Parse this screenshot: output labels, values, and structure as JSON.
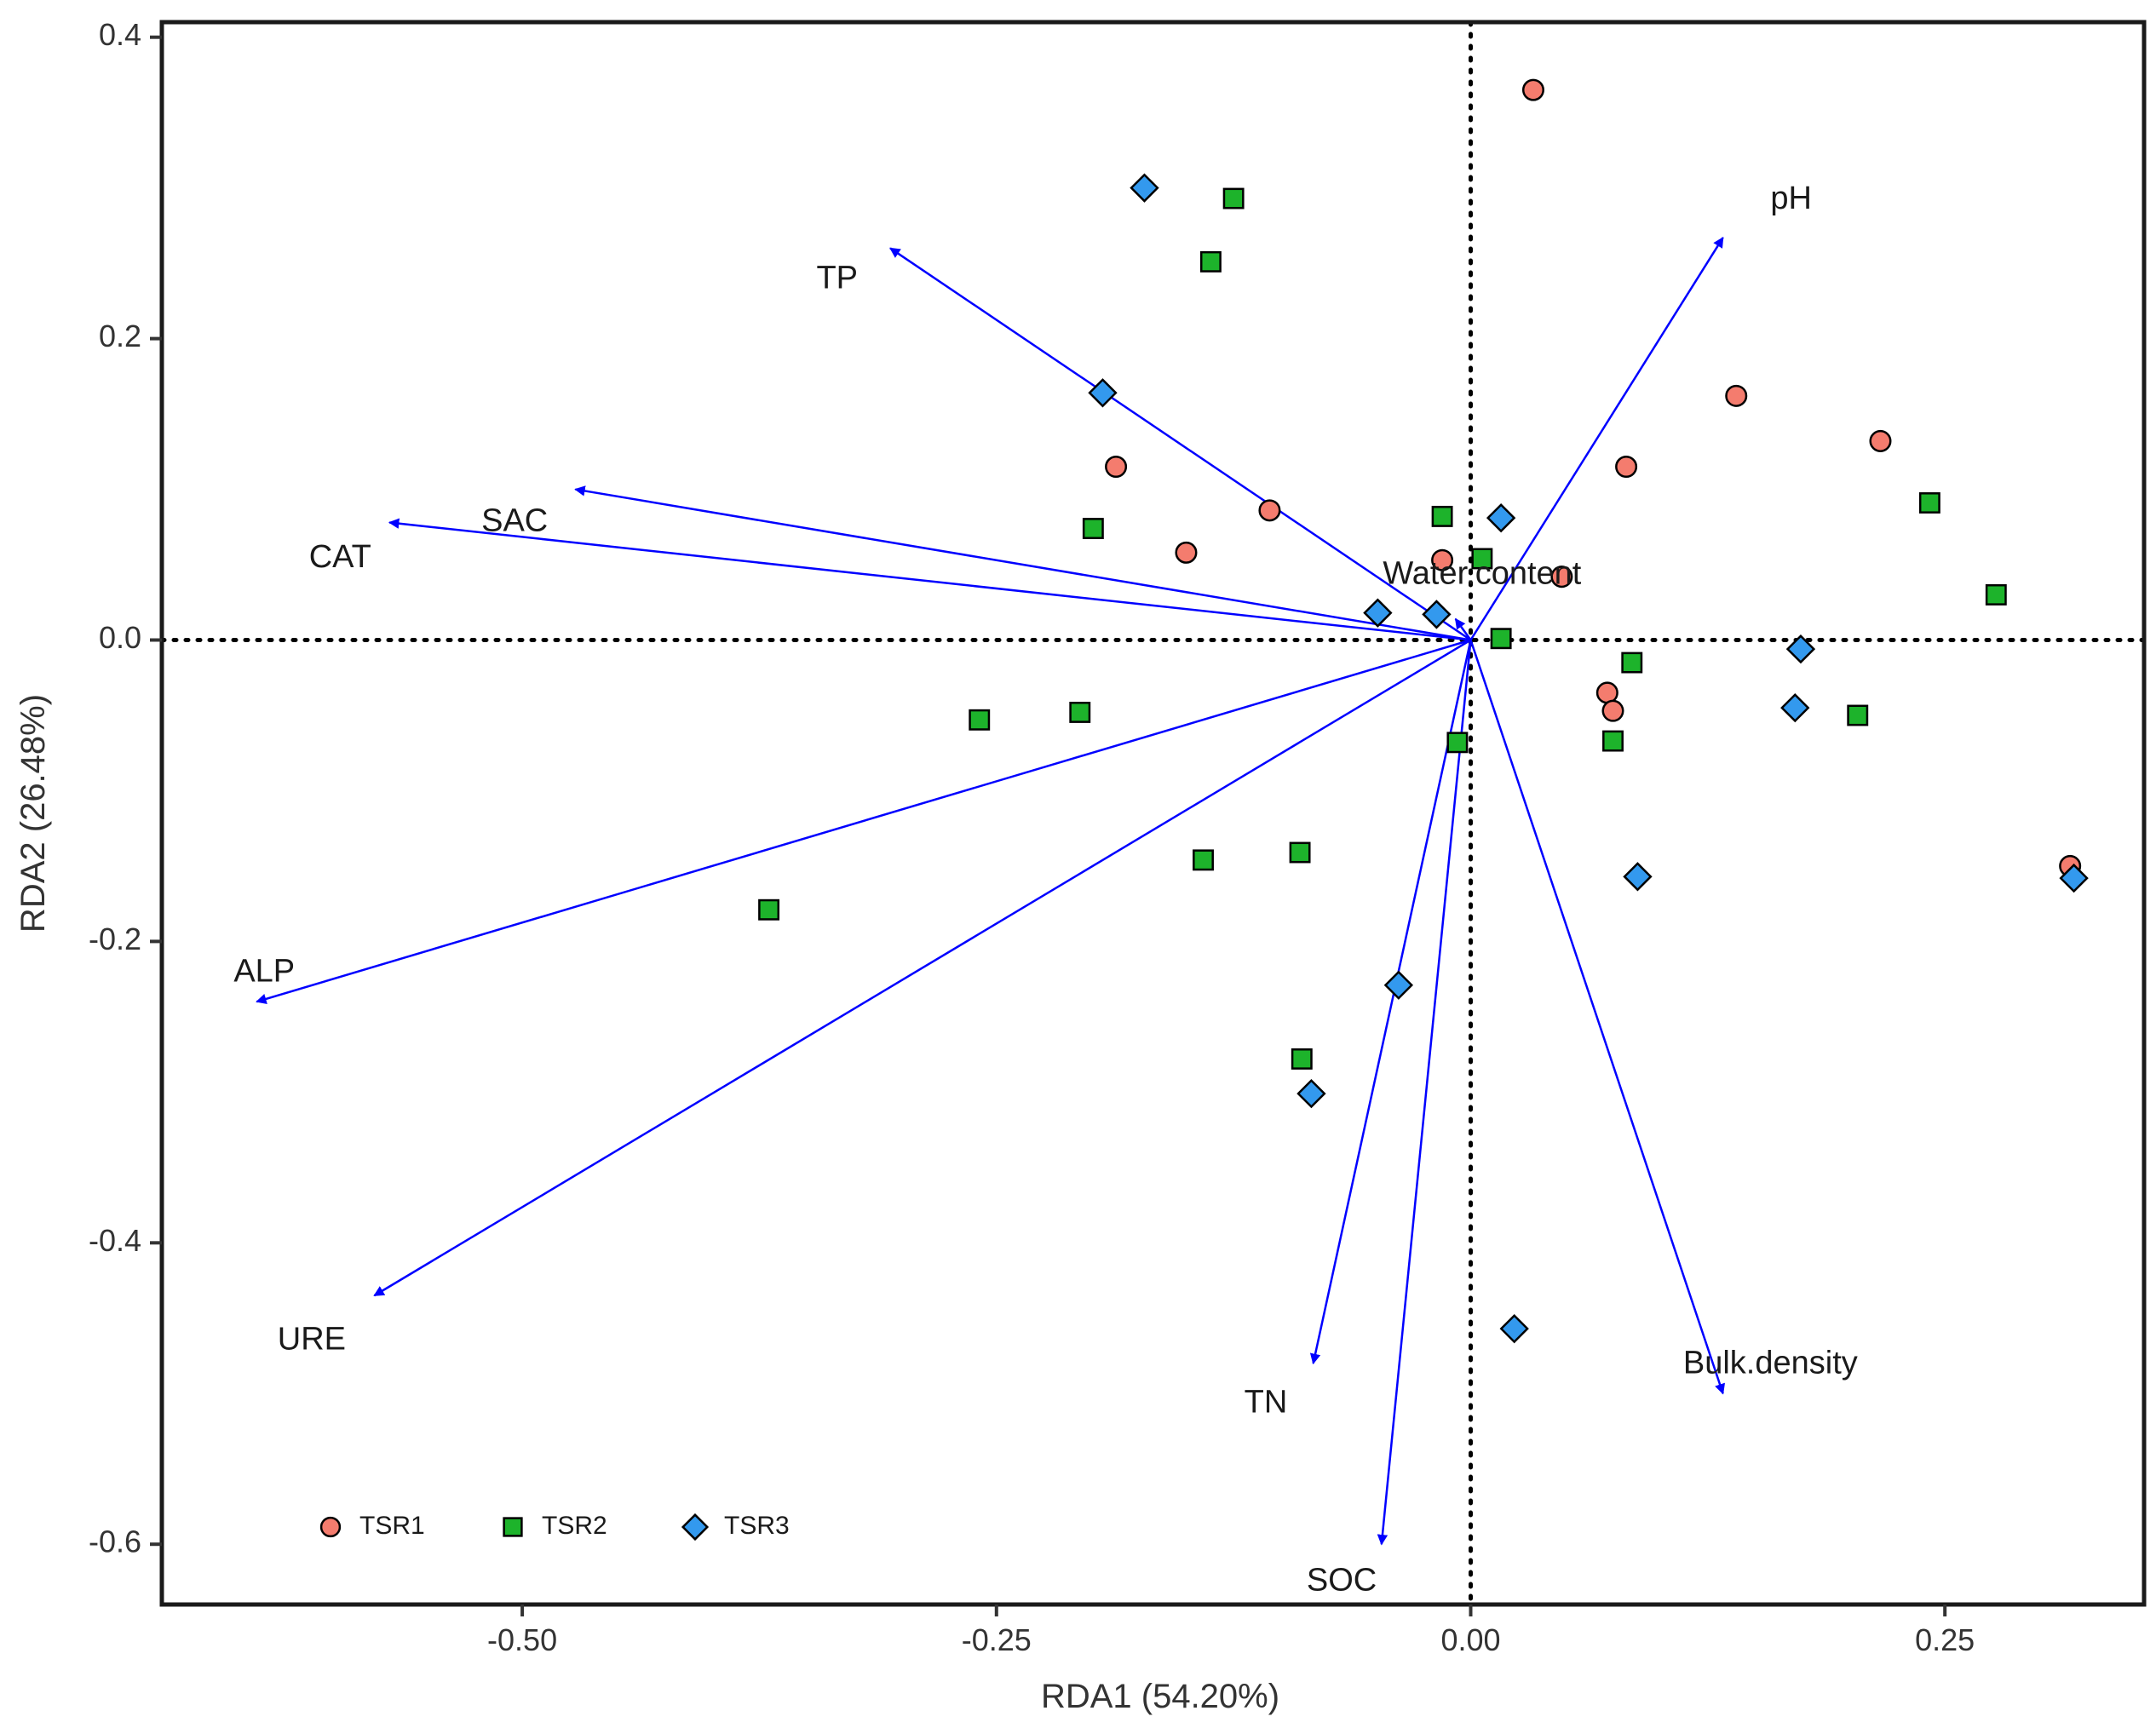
{
  "chart_data": {
    "type": "scatter",
    "subtype": "rda-biplot",
    "title": "",
    "xlabel": "RDA1 (54.20%)",
    "ylabel": "RDA2 (26.48%)",
    "xlim": [
      -0.69,
      0.355
    ],
    "ylim": [
      -0.64,
      0.41
    ],
    "x_ticks": [
      -0.5,
      -0.25,
      0.0,
      0.25
    ],
    "x_tick_labels": [
      "-0.50",
      "-0.25",
      "0.00",
      "0.25"
    ],
    "y_ticks": [
      0.4,
      0.2,
      0.0,
      -0.2,
      -0.4,
      -0.6
    ],
    "y_tick_labels": [
      "0.4",
      "0.2",
      "0.0",
      "-0.2",
      "-0.4",
      "-0.6"
    ],
    "grid": false,
    "reference_lines": {
      "x": 0,
      "y": 0,
      "style": "dotted"
    },
    "legend_position": "bottom-left",
    "series": [
      {
        "name": "TSR1",
        "marker": "circle",
        "color": "#f47c6e",
        "points": [
          [
            0.033,
            0.365
          ],
          [
            0.14,
            0.162
          ],
          [
            0.216,
            0.132
          ],
          [
            0.082,
            0.115
          ],
          [
            -0.187,
            0.115
          ],
          [
            -0.106,
            0.086
          ],
          [
            -0.15,
            0.058
          ],
          [
            -0.015,
            0.053
          ],
          [
            0.048,
            0.042
          ],
          [
            0.072,
            -0.035
          ],
          [
            0.075,
            -0.047
          ],
          [
            0.316,
            -0.15
          ]
        ]
      },
      {
        "name": "TSR2",
        "marker": "square",
        "color": "#1db32b",
        "points": [
          [
            -0.125,
            0.293
          ],
          [
            -0.137,
            0.251
          ],
          [
            0.242,
            0.091
          ],
          [
            -0.015,
            0.082
          ],
          [
            -0.199,
            0.074
          ],
          [
            0.006,
            0.054
          ],
          [
            0.277,
            0.03
          ],
          [
            0.016,
            0.001
          ],
          [
            0.085,
            -0.015
          ],
          [
            -0.206,
            -0.048
          ],
          [
            -0.259,
            -0.053
          ],
          [
            0.204,
            -0.05
          ],
          [
            -0.007,
            -0.068
          ],
          [
            0.075,
            -0.067
          ],
          [
            -0.09,
            -0.141
          ],
          [
            -0.141,
            -0.146
          ],
          [
            -0.37,
            -0.179
          ],
          [
            -0.089,
            -0.278
          ]
        ]
      },
      {
        "name": "TSR3",
        "marker": "diamond",
        "color": "#3399ee",
        "points": [
          [
            -0.172,
            0.3
          ],
          [
            -0.194,
            0.164
          ],
          [
            0.016,
            0.081
          ],
          [
            -0.049,
            0.018
          ],
          [
            -0.018,
            0.017
          ],
          [
            0.174,
            -0.006
          ],
          [
            0.171,
            -0.045
          ],
          [
            0.088,
            -0.157
          ],
          [
            0.318,
            -0.158
          ],
          [
            -0.038,
            -0.229
          ],
          [
            -0.084,
            -0.301
          ],
          [
            0.023,
            -0.457
          ]
        ]
      }
    ],
    "arrows": [
      {
        "label": "pH",
        "x": 0.133,
        "y": 0.267,
        "label_x": 0.158,
        "label_y": 0.292,
        "anchor": "start"
      },
      {
        "label": "TP",
        "x": -0.306,
        "y": 0.26,
        "label_x": -0.334,
        "label_y": 0.239,
        "anchor": "middle"
      },
      {
        "label": "SAC",
        "x": -0.472,
        "y": 0.1,
        "label_x": -0.504,
        "label_y": 0.078,
        "anchor": "middle"
      },
      {
        "label": "CAT",
        "x": -0.57,
        "y": 0.078,
        "label_x": -0.596,
        "label_y": 0.054,
        "anchor": "middle"
      },
      {
        "label": "Water.content",
        "x": -0.008,
        "y": 0.014,
        "label_x": 0.006,
        "label_y": 0.043,
        "anchor": "middle"
      },
      {
        "label": "ALP",
        "x": -0.64,
        "y": -0.24,
        "label_x": -0.636,
        "label_y": -0.221,
        "anchor": "middle"
      },
      {
        "label": "URE",
        "x": -0.578,
        "y": -0.435,
        "label_x": -0.611,
        "label_y": -0.465,
        "anchor": "middle"
      },
      {
        "label": "TN",
        "x": -0.083,
        "y": -0.48,
        "label_x": -0.108,
        "label_y": -0.507,
        "anchor": "middle"
      },
      {
        "label": "SOC",
        "x": -0.047,
        "y": -0.6,
        "label_x": -0.068,
        "label_y": -0.625,
        "anchor": "middle"
      },
      {
        "label": "Bulk.density",
        "x": 0.133,
        "y": -0.5,
        "label_x": 0.158,
        "label_y": -0.481,
        "anchor": "middle"
      }
    ],
    "arrow_color": "#0000ff"
  }
}
